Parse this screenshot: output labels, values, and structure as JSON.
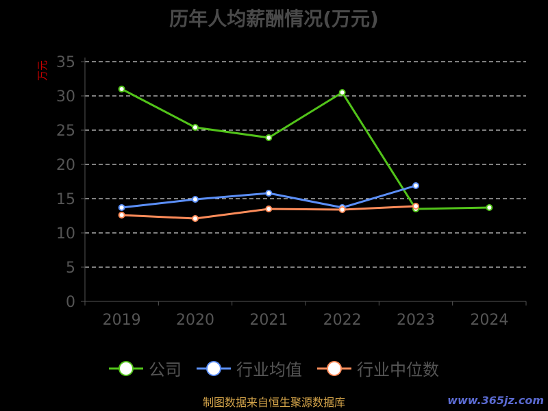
{
  "chart_data": {
    "type": "line",
    "title": "历年人均薪酬情况(万元)",
    "ylabel": "万元",
    "xlabel": "",
    "categories": [
      "2019",
      "2020",
      "2021",
      "2022",
      "2023",
      "2024"
    ],
    "ylim": [
      0,
      35
    ],
    "yticks": [
      0,
      5,
      10,
      15,
      20,
      25,
      30,
      35
    ],
    "grid": true,
    "legend_position": "bottom",
    "series": [
      {
        "name": "公司",
        "color": "#52c41a",
        "values": [
          31.0,
          25.4,
          23.9,
          30.5,
          13.5,
          13.7
        ]
      },
      {
        "name": "行业均值",
        "color": "#5b8ff9",
        "values": [
          13.7,
          14.9,
          15.8,
          13.7,
          16.9,
          null
        ]
      },
      {
        "name": "行业中位数",
        "color": "#ff8c5a",
        "values": [
          12.6,
          12.1,
          13.5,
          13.4,
          13.9,
          null
        ]
      }
    ]
  },
  "source_text": "制图数据来自恒生聚源数据库",
  "watermark": "www.365jz.com"
}
